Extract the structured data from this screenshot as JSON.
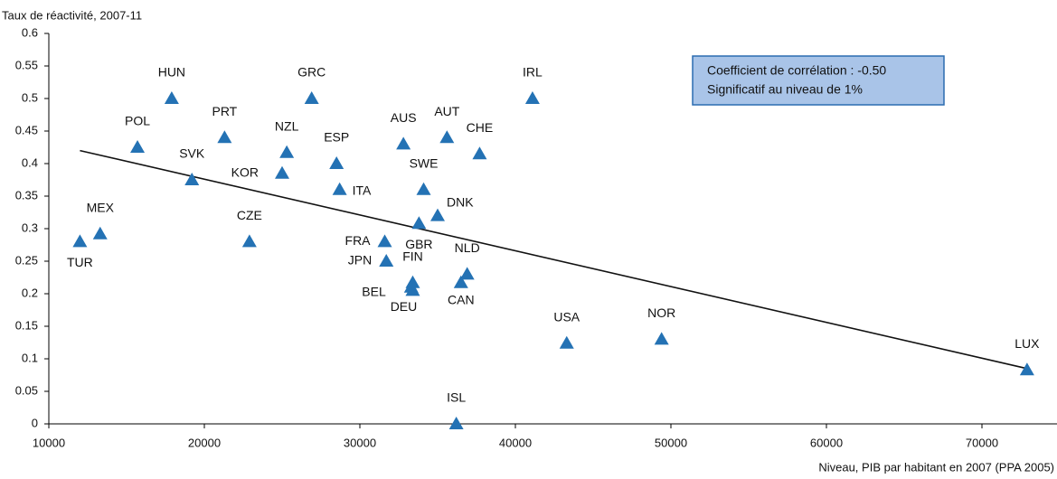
{
  "chart_data": {
    "type": "scatter",
    "y_label": "Taux de réactivité, 2007-11",
    "x_label": "Niveau, PIB par habitant en 2007 (PPA 2005)",
    "annotation": [
      "Coefficient de corrélation : -0.50",
      "Significatif au niveau de 1%"
    ],
    "color": "#2472b4",
    "labels": [
      "HUN",
      "GRC",
      "IRL",
      "POL",
      "PRT",
      "NZL",
      "SVK",
      "KOR",
      "ESP",
      "ITA",
      "AUS",
      "AUT",
      "CHE",
      "SWE",
      "DNK",
      "GBR",
      "MEX",
      "TUR",
      "CZE",
      "FRA",
      "JPN",
      "NLD",
      "FIN",
      "BEL",
      "DEU",
      "CAN",
      "USA",
      "NOR",
      "LUX",
      "ISL"
    ],
    "x": [
      17900,
      26900,
      41100,
      15700,
      21300,
      25300,
      19200,
      25000,
      28500,
      28700,
      32800,
      35600,
      37700,
      34100,
      35000,
      33800,
      13300,
      12000,
      22900,
      31600,
      31700,
      36900,
      33400,
      33300,
      33400,
      36500,
      43300,
      49400,
      72900,
      36200
    ],
    "values": [
      0.5,
      0.5,
      0.5,
      0.425,
      0.44,
      0.417,
      0.375,
      0.385,
      0.4,
      0.36,
      0.43,
      0.44,
      0.415,
      0.36,
      0.32,
      0.308,
      0.292,
      0.28,
      0.28,
      0.28,
      0.25,
      0.23,
      0.217,
      0.21,
      0.205,
      0.217,
      0.124,
      0.13,
      0.083,
      0
    ],
    "trend": {
      "x": [
        12000,
        72900
      ],
      "values": [
        0.42,
        0.085
      ]
    },
    "xlim": [
      10000,
      76000
    ],
    "xticks": [
      10000,
      20000,
      30000,
      40000,
      50000,
      60000,
      70000
    ],
    "ylim": [
      0,
      0.6
    ],
    "yticks": [
      0,
      0.05,
      0.1,
      0.15,
      0.2,
      0.25,
      0.3,
      0.35,
      0.4,
      0.45,
      0.5,
      0.55,
      0.6
    ]
  }
}
